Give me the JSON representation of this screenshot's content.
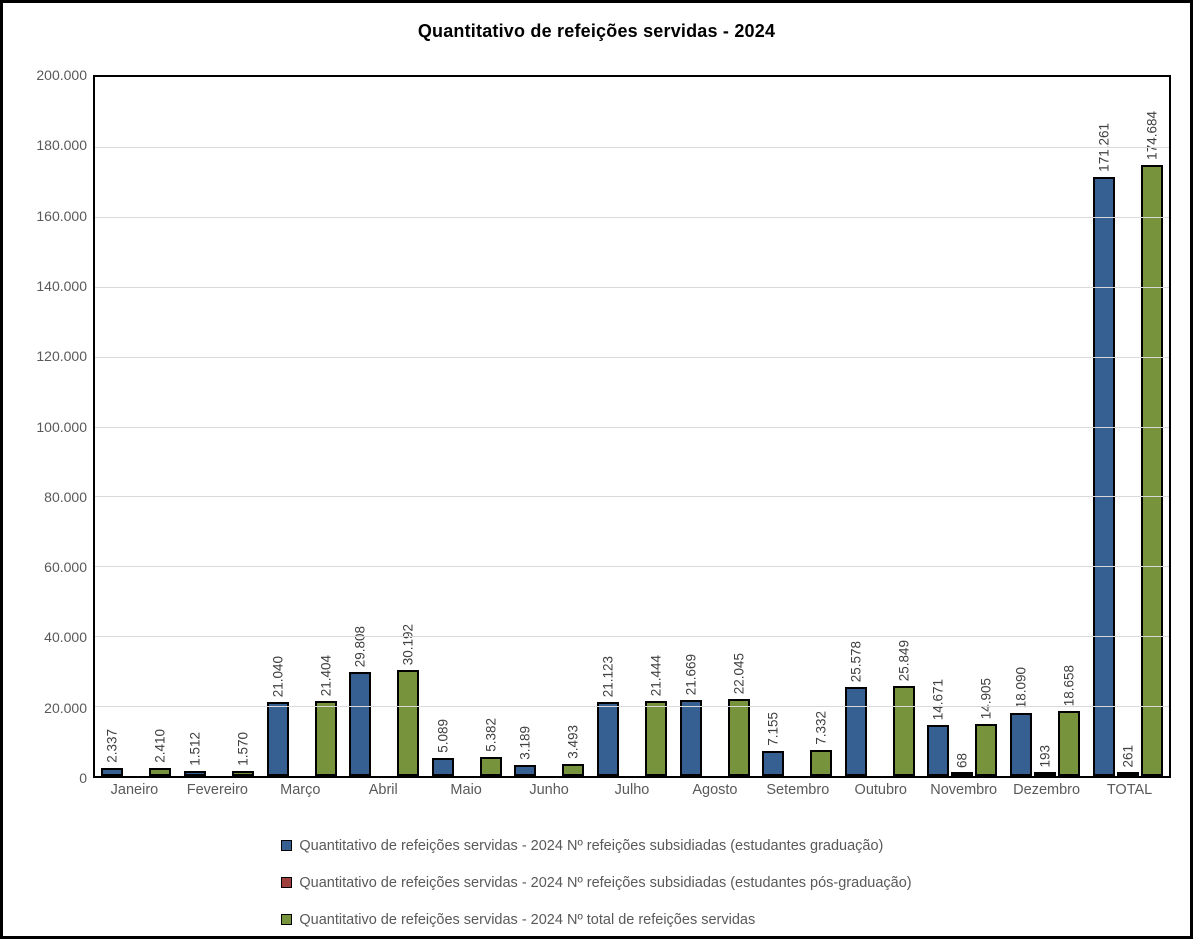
{
  "title": "Quantitativo de refeições servidas - 2024",
  "colors": {
    "series_graduacao": "#376092",
    "series_pos_graduacao": "#9E413E",
    "series_total": "#77933C",
    "bar_border": "#000000",
    "gridline": "#D9D9D9",
    "axis_text": "#595959",
    "data_label_text": "#404040",
    "chart_border": "#000000"
  },
  "chart_data": {
    "type": "bar",
    "title": "Quantitativo de refeições servidas - 2024",
    "xlabel": "",
    "ylabel": "",
    "ylim": [
      0,
      200000
    ],
    "ytick_step": 20000,
    "ytick_labels": [
      "200.000",
      "180.000",
      "160.000",
      "140.000",
      "120.000",
      "100.000",
      "80.000",
      "60.000",
      "40.000",
      "20.000",
      "0"
    ],
    "grid": true,
    "legend_position": "bottom",
    "categories": [
      "Janeiro",
      "Fevereiro",
      "Março",
      "Abril",
      "Maio",
      "Junho",
      "Julho",
      "Agosto",
      "Setembro",
      "Outubro",
      "Novembro",
      "Dezembro",
      "TOTAL"
    ],
    "series": [
      {
        "name": "Quantitativo de refeições servidas - 2024 Nº refeições subsidiadas (estudantes graduação)",
        "color": "#376092",
        "values": [
          2337,
          1512,
          21040,
          29808,
          5089,
          3189,
          21123,
          21669,
          7155,
          25578,
          14671,
          18090,
          171261
        ],
        "labels": [
          "2.337",
          "1.512",
          "21.040",
          "29.808",
          "5.089",
          "3.189",
          "21.123",
          "21.669",
          "7.155",
          "25.578",
          "14.671",
          "18.090",
          "171.261"
        ]
      },
      {
        "name": "Quantitativo de refeições servidas - 2024 Nº refeições subsidiadas (estudantes pós-graduação)",
        "color": "#9E413E",
        "values": [
          null,
          null,
          null,
          null,
          null,
          null,
          null,
          null,
          null,
          null,
          68,
          193,
          261
        ],
        "labels": [
          null,
          null,
          null,
          null,
          null,
          null,
          null,
          null,
          null,
          null,
          "68",
          "193",
          "261"
        ]
      },
      {
        "name": "Quantitativo de refeições servidas - 2024 Nº total de refeições servidas",
        "color": "#77933C",
        "values": [
          2410,
          1570,
          21404,
          30192,
          5382,
          3493,
          21444,
          22045,
          7332,
          25849,
          14905,
          18658,
          174684
        ],
        "labels": [
          "2.410",
          "1.570",
          "21.404",
          "30.192",
          "5.382",
          "3.493",
          "21.444",
          "22.045",
          "7.332",
          "25.849",
          "14.905",
          "18.658",
          "174.684"
        ]
      }
    ]
  }
}
